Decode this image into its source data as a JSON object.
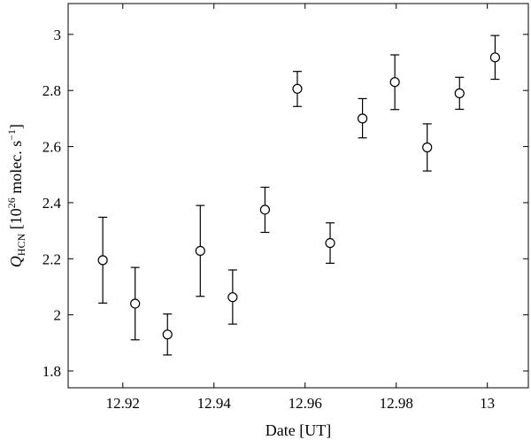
{
  "chart_data": {
    "type": "scatter",
    "title": "",
    "xlabel": "Date [UT]",
    "ylabel": {
      "q": "Q",
      "sub": "HCN",
      "pre": " [10",
      "exp1": "26",
      "mid": " molec. s",
      "exp2": "−1",
      "post": "]"
    },
    "xlim": [
      12.908,
      13.009
    ],
    "ylim": [
      1.74,
      3.11
    ],
    "x_ticks": [
      12.92,
      12.94,
      12.96,
      12.98,
      13.0
    ],
    "x_tick_labels": [
      "12.92",
      "12.94",
      "12.96",
      "12.98",
      "13"
    ],
    "y_ticks": [
      1.8,
      2.0,
      2.2,
      2.4,
      2.6,
      2.8,
      3.0
    ],
    "y_tick_labels": [
      "1.8",
      "2",
      "2.2",
      "2.4",
      "2.6",
      "2.8",
      "3"
    ],
    "grid": false,
    "marker": "open-circle",
    "color": "#000000",
    "points": [
      {
        "x": 12.9156,
        "y": 2.195,
        "err_low": 2.042,
        "err_high": 2.348
      },
      {
        "x": 12.9227,
        "y": 2.04,
        "err_low": 1.911,
        "err_high": 2.169
      },
      {
        "x": 12.9298,
        "y": 1.93,
        "err_low": 1.857,
        "err_high": 2.003
      },
      {
        "x": 12.937,
        "y": 2.228,
        "err_low": 2.066,
        "err_high": 2.39
      },
      {
        "x": 12.9441,
        "y": 2.063,
        "err_low": 1.967,
        "err_high": 2.16
      },
      {
        "x": 12.9512,
        "y": 2.375,
        "err_low": 2.294,
        "err_high": 2.455
      },
      {
        "x": 12.9583,
        "y": 2.806,
        "err_low": 2.743,
        "err_high": 2.868
      },
      {
        "x": 12.9655,
        "y": 2.256,
        "err_low": 2.184,
        "err_high": 2.328
      },
      {
        "x": 12.9726,
        "y": 2.7,
        "err_low": 2.631,
        "err_high": 2.771
      },
      {
        "x": 12.9797,
        "y": 2.83,
        "err_low": 2.732,
        "err_high": 2.927
      },
      {
        "x": 12.9868,
        "y": 2.597,
        "err_low": 2.513,
        "err_high": 2.681
      },
      {
        "x": 12.9939,
        "y": 2.79,
        "err_low": 2.733,
        "err_high": 2.847
      },
      {
        "x": 13.0017,
        "y": 2.918,
        "err_low": 2.84,
        "err_high": 2.996
      }
    ]
  }
}
